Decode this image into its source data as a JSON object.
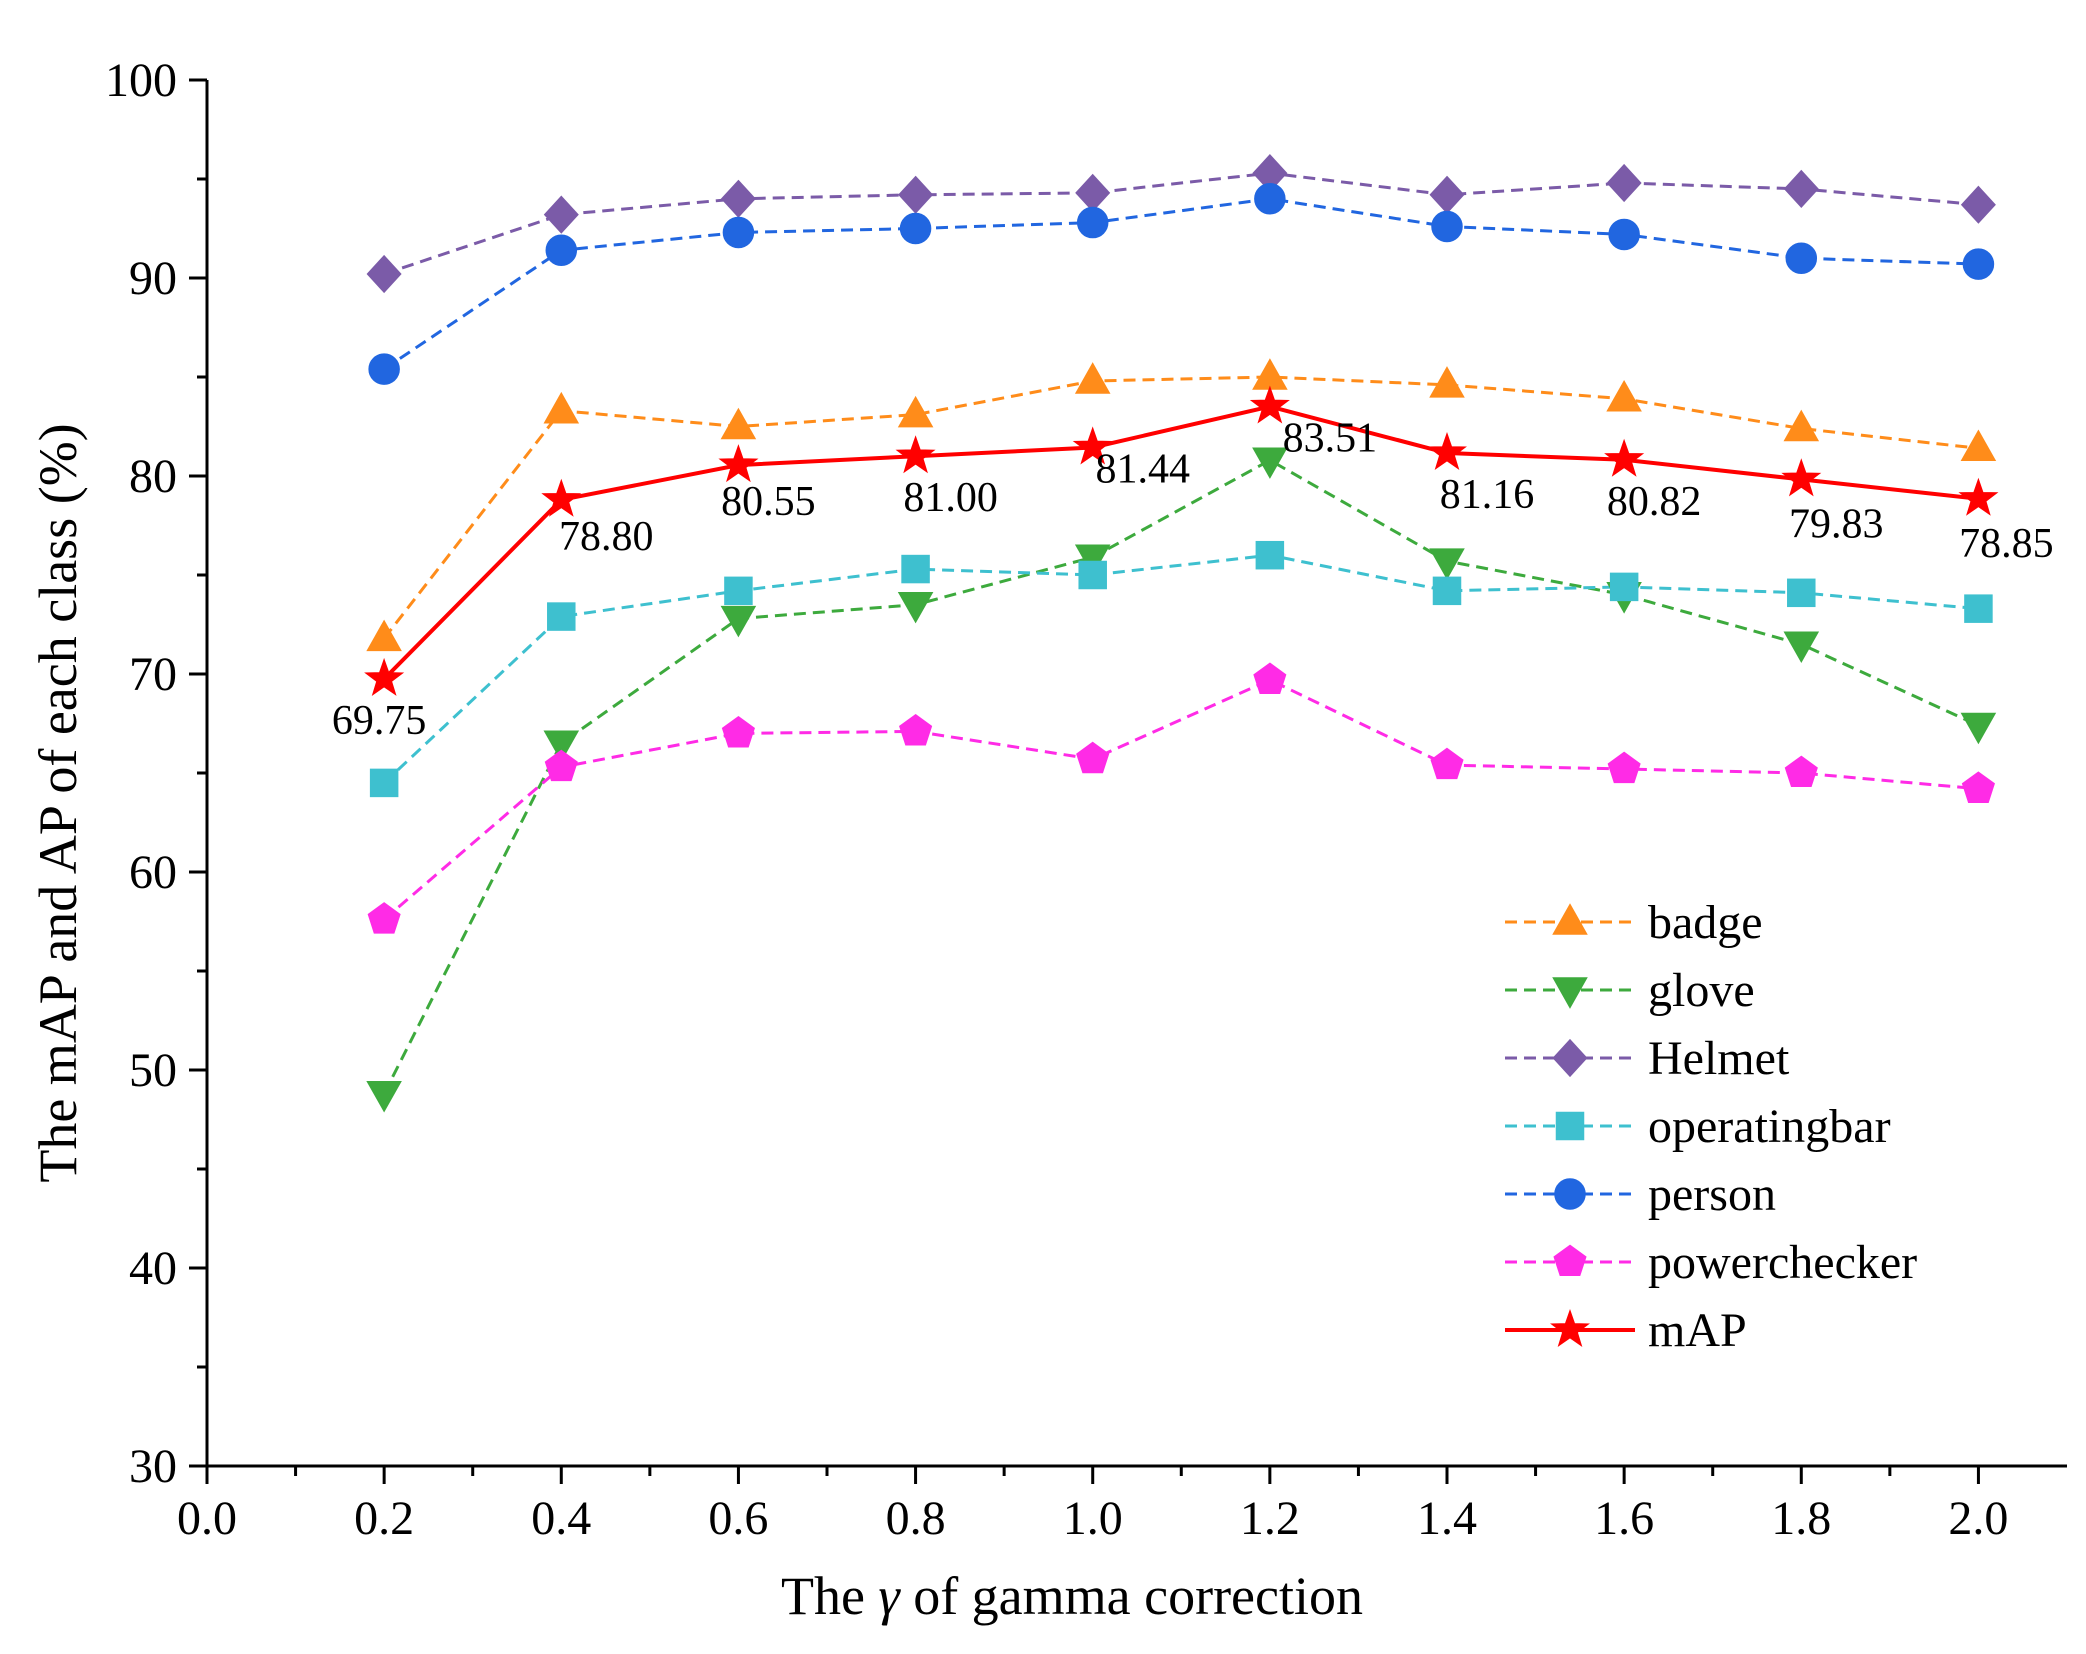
{
  "chart_data": {
    "type": "line",
    "title": "",
    "xlabel_parts": [
      "The ",
      "γ",
      " of gamma correction"
    ],
    "ylabel": "The mAP and AP of each class (%)",
    "xlim": [
      0.0,
      2.1
    ],
    "ylim": [
      30,
      100
    ],
    "grid": false,
    "legend_position": "lower-right",
    "x_ticks": [
      "0.0",
      "0.2",
      "0.4",
      "0.6",
      "0.8",
      "1.0",
      "1.2",
      "1.4",
      "1.6",
      "1.8",
      "2.0"
    ],
    "y_ticks": [
      "30",
      "40",
      "50",
      "60",
      "70",
      "80",
      "90",
      "100"
    ],
    "x": [
      0.2,
      0.4,
      0.6,
      0.8,
      1.0,
      1.2,
      1.4,
      1.6,
      1.8,
      2.0
    ],
    "series": [
      {
        "name": "badge",
        "color": "#FF8C1A",
        "marker": "triangle-up",
        "dashed": true,
        "values": [
          71.8,
          83.3,
          82.5,
          83.1,
          84.8,
          85.0,
          84.6,
          83.9,
          82.4,
          81.4
        ]
      },
      {
        "name": "glove",
        "color": "#3DAA3D",
        "marker": "triangle-down",
        "dashed": true,
        "values": [
          48.8,
          66.5,
          72.8,
          73.5,
          75.9,
          80.8,
          75.7,
          74.0,
          71.5,
          67.4
        ]
      },
      {
        "name": "Helmet",
        "color": "#7B5BA8",
        "marker": "diamond",
        "dashed": true,
        "values": [
          90.2,
          93.2,
          94.0,
          94.2,
          94.3,
          95.3,
          94.2,
          94.8,
          94.5,
          93.7
        ]
      },
      {
        "name": "operatingbar",
        "color": "#3EC0CF",
        "marker": "square",
        "dashed": true,
        "values": [
          64.5,
          72.9,
          74.2,
          75.3,
          75.0,
          76.0,
          74.2,
          74.4,
          74.1,
          73.3
        ]
      },
      {
        "name": "person",
        "color": "#2166E0",
        "marker": "circle",
        "dashed": true,
        "values": [
          85.4,
          91.4,
          92.3,
          92.5,
          92.8,
          94.0,
          92.6,
          92.2,
          91.0,
          90.7
        ]
      },
      {
        "name": "powerchecker",
        "color": "#FF2BE6",
        "marker": "pentagon",
        "dashed": true,
        "values": [
          57.6,
          65.3,
          67.0,
          67.1,
          65.7,
          69.7,
          65.4,
          65.2,
          65.0,
          64.2
        ]
      },
      {
        "name": "mAP",
        "color": "#FF0000",
        "marker": "star",
        "dashed": false,
        "values": [
          69.75,
          78.8,
          80.55,
          81.0,
          81.44,
          83.51,
          81.16,
          80.82,
          79.83,
          78.85
        ]
      }
    ],
    "annotations": [
      "69.75",
      "78.80",
      "80.55",
      "81.00",
      "81.44",
      "83.51",
      "81.16",
      "80.82",
      "79.83",
      "78.85"
    ]
  }
}
